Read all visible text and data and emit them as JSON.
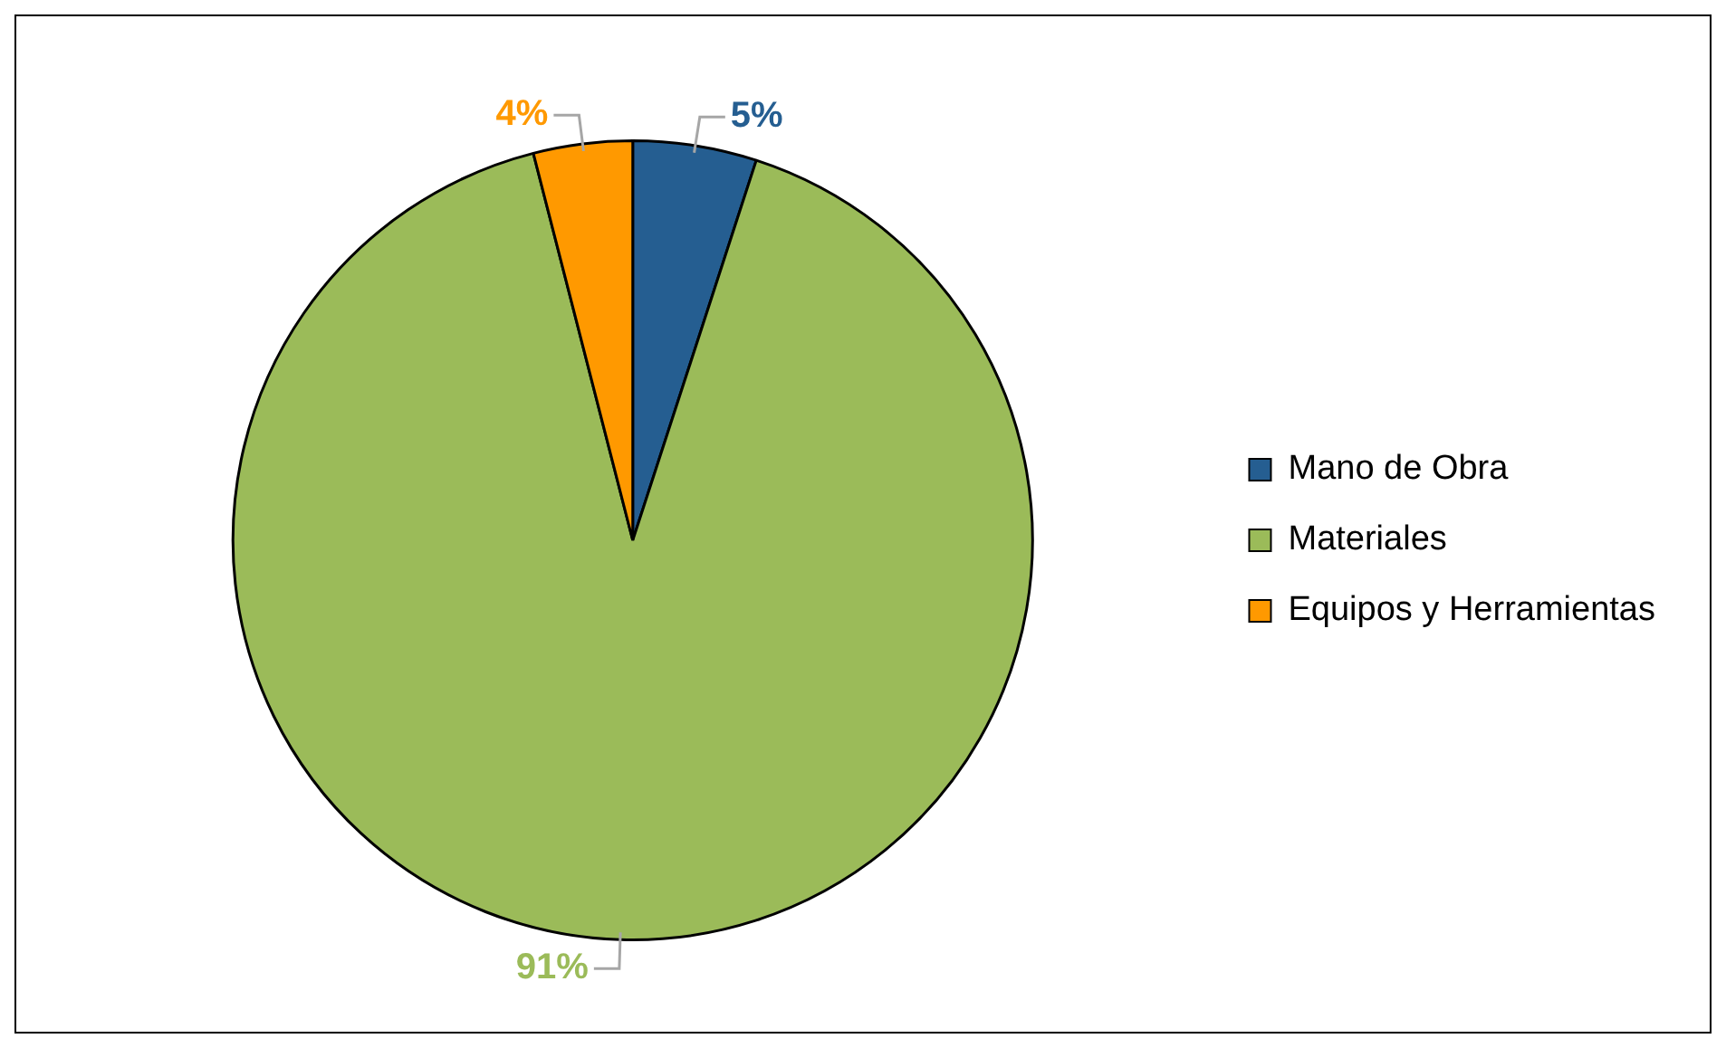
{
  "chart_data": {
    "type": "pie",
    "categories": [
      "Mano de Obra",
      "Materiales",
      "Equipos y Herramientas"
    ],
    "values": [
      5,
      91,
      4
    ],
    "colors": [
      "#255e91",
      "#9bbb59",
      "#ff9900"
    ],
    "value_labels": [
      "5%",
      "91%",
      "4%"
    ],
    "legend": "right"
  }
}
